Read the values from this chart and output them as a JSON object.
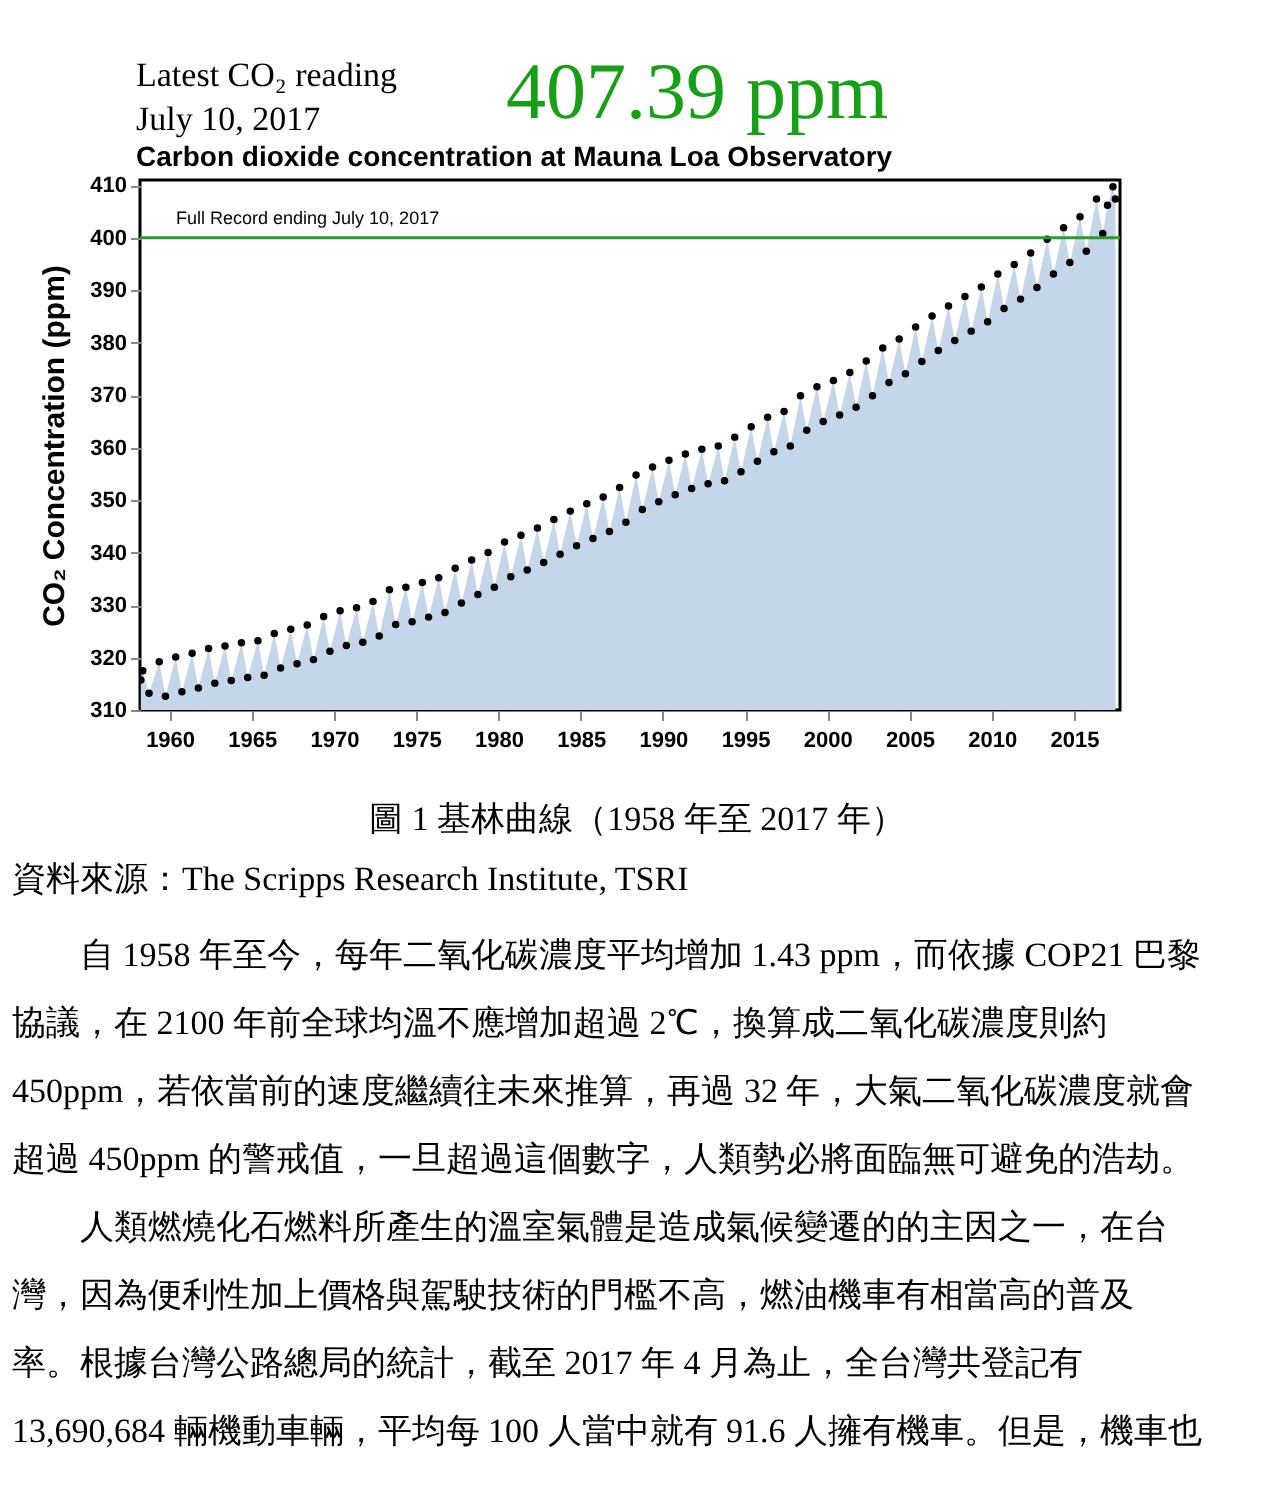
{
  "chart_data": {
    "type": "scatter",
    "title": "Carbon dioxide concentration at Mauna Loa Observatory",
    "ylabel": "CO₂ Concentration (ppm)",
    "annotations": [
      "Latest CO₂ reading",
      "July 10, 2017",
      "407.39 ppm",
      "Full Record ending July 10, 2017",
      "圖 1 基林曲線（1958 年至 2017 年）",
      "資料來源：The Scripps Research Institute, TSRI",
      "　　自 1958 年至今，每年二氧化碳濃度平均增加 1.43 ppm，而依據 COP21 巴黎",
      "協議，在 2100 年前全球均溫不應增加超過 2℃，換算成二氧化碳濃度則約",
      "450ppm，若依當前的速度繼續往未來推算，再過 32 年，大氣二氧化碳濃度就會",
      "超過 450ppm 的警戒值，一旦超過這個數字，人類勢必將面臨無可避免的浩劫。",
      "　　人類燃燒化石燃料所產生的溫室氣體是造成氣候變遷的的主因之一，在台",
      "灣，因為便利性加上價格與駕駛技術的門檻不高，燃油機車有相當高的普及",
      "率。根據台灣公路總局的統計，截至 2017 年 4 月為止，全台灣共登記有",
      "13,690,684 輛機動車輛，平均每 100 人當中就有 91.6 人擁有機車。但是，機車也"
    ],
    "x": [
      1958.25,
      1958.37,
      1958.75,
      1959.37,
      1959.75,
      1960.37,
      1960.75,
      1961.37,
      1961.75,
      1962.37,
      1962.75,
      1963.37,
      1963.75,
      1964.37,
      1964.75,
      1965.37,
      1965.75,
      1966.37,
      1966.75,
      1967.37,
      1967.75,
      1968.37,
      1968.75,
      1969.37,
      1969.75,
      1970.37,
      1970.75,
      1971.37,
      1971.75,
      1972.37,
      1972.75,
      1973.37,
      1973.75,
      1974.37,
      1974.75,
      1975.37,
      1975.75,
      1976.37,
      1976.75,
      1977.37,
      1977.75,
      1978.37,
      1978.75,
      1979.37,
      1979.75,
      1980.37,
      1980.75,
      1981.37,
      1981.75,
      1982.37,
      1982.75,
      1983.37,
      1983.75,
      1984.37,
      1984.75,
      1985.37,
      1985.75,
      1986.37,
      1986.75,
      1987.37,
      1987.75,
      1988.37,
      1988.75,
      1989.37,
      1989.75,
      1990.37,
      1990.75,
      1991.37,
      1991.75,
      1992.37,
      1992.75,
      1993.37,
      1993.75,
      1994.37,
      1994.75,
      1995.37,
      1995.75,
      1996.37,
      1996.75,
      1997.37,
      1997.75,
      1998.37,
      1998.75,
      1999.37,
      1999.75,
      2000.37,
      2000.75,
      2001.37,
      2001.75,
      2002.37,
      2002.75,
      2003.37,
      2003.75,
      2004.37,
      2004.75,
      2005.37,
      2005.75,
      2006.37,
      2006.75,
      2007.37,
      2007.75,
      2008.37,
      2008.75,
      2009.37,
      2009.75,
      2010.37,
      2010.75,
      2011.37,
      2011.75,
      2012.37,
      2012.75,
      2013.37,
      2013.75,
      2014.37,
      2014.75,
      2015.37,
      2015.75,
      2016.37,
      2016.75,
      2017.04,
      2017.37,
      2017.52
    ],
    "series": [
      {
        "type": "area",
        "color": "#c5d5ea",
        "values": [
          315.7,
          317.5,
          313.2,
          319.2,
          312.6,
          320.1,
          313.5,
          320.8,
          314.2,
          321.7,
          315.1,
          322.2,
          315.6,
          322.8,
          316.2,
          323.2,
          316.6,
          324.6,
          318.0,
          325.4,
          318.8,
          326.2,
          319.6,
          327.8,
          321.2,
          328.9,
          322.3,
          329.5,
          322.9,
          330.7,
          324.1,
          332.9,
          326.3,
          333.4,
          326.8,
          334.3,
          327.7,
          335.2,
          328.6,
          337.0,
          330.4,
          338.6,
          332.0,
          340.0,
          333.4,
          342.0,
          335.4,
          343.3,
          336.7,
          344.7,
          338.1,
          346.3,
          339.7,
          347.9,
          341.3,
          349.3,
          342.7,
          350.6,
          344.0,
          352.4,
          345.8,
          354.8,
          348.2,
          356.3,
          349.7,
          357.6,
          351.0,
          358.8,
          352.2,
          359.7,
          353.1,
          360.3,
          353.7,
          362.0,
          355.4,
          364.0,
          357.4,
          365.8,
          359.2,
          366.9,
          360.3,
          369.9,
          363.3,
          371.6,
          365.0,
          372.8,
          366.2,
          374.3,
          367.7,
          376.5,
          369.9,
          379.0,
          372.4,
          380.7,
          374.1,
          383.0,
          376.4,
          385.1,
          378.5,
          387.0,
          380.4,
          388.8,
          382.2,
          390.6,
          384.0,
          393.1,
          386.5,
          394.9,
          388.3,
          397.1,
          390.5,
          399.7,
          393.1,
          401.9,
          395.3,
          404.0,
          397.4,
          407.4,
          400.8,
          406.2,
          409.7,
          407.4
        ]
      },
      {
        "color": "#000000",
        "marker": "circle",
        "values": [
          315.7,
          317.5,
          313.2,
          319.2,
          312.6,
          320.1,
          313.5,
          320.8,
          314.2,
          321.7,
          315.1,
          322.2,
          315.6,
          322.8,
          316.2,
          323.2,
          316.6,
          324.6,
          318.0,
          325.4,
          318.8,
          326.2,
          319.6,
          327.8,
          321.2,
          328.9,
          322.3,
          329.5,
          322.9,
          330.7,
          324.1,
          332.9,
          326.3,
          333.4,
          326.8,
          334.3,
          327.7,
          335.2,
          328.6,
          337.0,
          330.4,
          338.6,
          332.0,
          340.0,
          333.4,
          342.0,
          335.4,
          343.3,
          336.7,
          344.7,
          338.1,
          346.3,
          339.7,
          347.9,
          341.3,
          349.3,
          342.7,
          350.6,
          344.0,
          352.4,
          345.8,
          354.8,
          348.2,
          356.3,
          349.7,
          357.6,
          351.0,
          358.8,
          352.2,
          359.7,
          353.1,
          360.3,
          353.7,
          362.0,
          355.4,
          364.0,
          357.4,
          365.8,
          359.2,
          366.9,
          360.3,
          369.9,
          363.3,
          371.6,
          365.0,
          372.8,
          366.2,
          374.3,
          367.7,
          376.5,
          369.9,
          379.0,
          372.4,
          380.7,
          374.1,
          383.0,
          376.4,
          385.1,
          378.5,
          387.0,
          380.4,
          388.8,
          382.2,
          390.6,
          384.0,
          393.1,
          386.5,
          394.9,
          388.3,
          397.1,
          390.5,
          399.7,
          393.1,
          401.9,
          395.3,
          404.0,
          397.4,
          407.4,
          400.8,
          406.2,
          409.7,
          407.4
        ]
      }
    ],
    "xlim": [
      1958.2,
      2017.8
    ],
    "ylim": [
      310,
      411
    ],
    "xticks": [
      1960,
      1965,
      1970,
      1975,
      1980,
      1985,
      1990,
      1995,
      2000,
      2005,
      2010,
      2015
    ],
    "yticks": [
      310,
      320,
      330,
      340,
      350,
      360,
      370,
      380,
      390,
      400,
      410
    ],
    "ref_lines": [
      {
        "axis": "y",
        "value": 400,
        "color": "#2e9a2e"
      }
    ]
  }
}
